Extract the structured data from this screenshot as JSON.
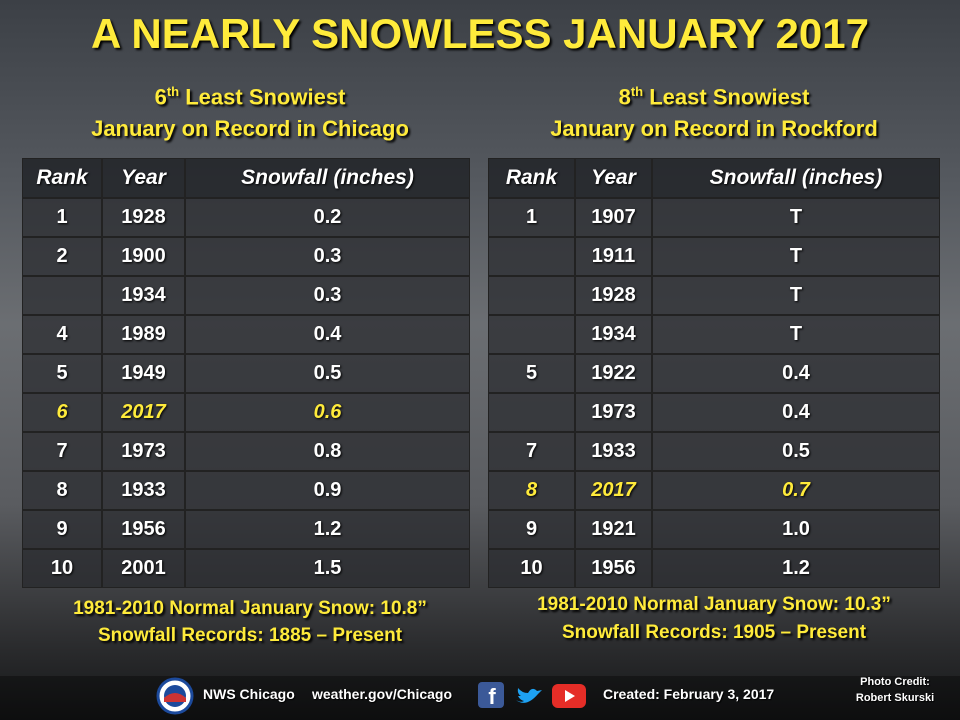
{
  "title": "A NEARLY SNOWLESS JANUARY 2017",
  "tables": [
    {
      "heading": {
        "rank": "6",
        "suffix": "th",
        "rest": " Least Snowiest",
        "line2": "January on Record in Chicago"
      },
      "columns": [
        "Rank",
        "Year",
        "Snowfall (inches)"
      ],
      "highlight_row": 5,
      "rows": [
        [
          "1",
          "1928",
          "0.2"
        ],
        [
          "2",
          "1900",
          "0.3"
        ],
        [
          null,
          "1934",
          "0.3"
        ],
        [
          "4",
          "1989",
          "0.4"
        ],
        [
          "5",
          "1949",
          "0.5"
        ],
        [
          "6",
          "2017",
          "0.6"
        ],
        [
          "7",
          "1973",
          "0.8"
        ],
        [
          "8",
          "1933",
          "0.9"
        ],
        [
          "9",
          "1956",
          "1.2"
        ],
        [
          "10",
          "2001",
          "1.5"
        ]
      ],
      "notes": [
        "1981-2010 Normal January Snow: 10.8”",
        "Snowfall Records: 1885 – Present"
      ]
    },
    {
      "heading": {
        "rank": "8",
        "suffix": "th",
        "rest": " Least Snowiest",
        "line2": "January on Record in Rockford"
      },
      "columns": [
        "Rank",
        "Year",
        "Snowfall (inches)"
      ],
      "highlight_row": 7,
      "rows": [
        [
          "1",
          "1907",
          "T"
        ],
        [
          null,
          "1911",
          "T"
        ],
        [
          null,
          "1928",
          "T"
        ],
        [
          null,
          "1934",
          "T"
        ],
        [
          "5",
          "1922",
          "0.4"
        ],
        [
          null,
          "1973",
          "0.4"
        ],
        [
          "7",
          "1933",
          "0.5"
        ],
        [
          "8",
          "2017",
          "0.7"
        ],
        [
          "9",
          "1921",
          "1.0"
        ],
        [
          "10",
          "1956",
          "1.2"
        ]
      ],
      "notes": [
        "1981-2010 Normal January Snow: 10.3”",
        "Snowfall Records: 1905 – Present"
      ]
    }
  ],
  "footer": {
    "office": "NWS Chicago",
    "website": "weather.gov/Chicago",
    "created": "Created: February 3, 2017",
    "credit_label": "Photo Credit:",
    "credit_name": "Robert Skurski"
  }
}
